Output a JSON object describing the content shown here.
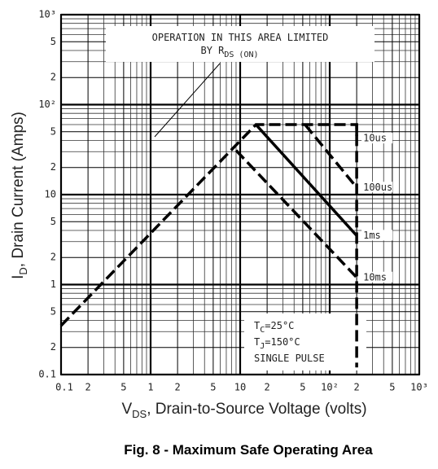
{
  "chart_data": {
    "type": "line",
    "title": "Fig. 8 - Maximum Safe Operating Area",
    "xlabel": {
      "main": "V",
      "sub": "DS",
      "rest": ", Drain-to-Source Voltage (volts)"
    },
    "ylabel": {
      "main": "I",
      "sub": "D",
      "rest": ", Drain Current (Amps)"
    },
    "log_x": true,
    "log_y": true,
    "grid": true,
    "xlim": [
      0.1,
      1000
    ],
    "ylim": [
      0.1,
      1000
    ],
    "xticks": [
      0.1,
      {
        "value": 0.2,
        "label": "2"
      },
      {
        "value": 0.5,
        "label": "5"
      },
      1,
      {
        "value": 2,
        "label": "2"
      },
      {
        "value": 5,
        "label": "5"
      },
      10,
      {
        "value": 20,
        "label": "2"
      },
      {
        "value": 50,
        "label": "5"
      },
      {
        "value": 100,
        "label": "10²"
      },
      {
        "value": 200,
        "label": "2"
      },
      {
        "value": 500,
        "label": "5"
      },
      {
        "value": 1000,
        "label": "10³"
      }
    ],
    "yticks": [
      0.1,
      {
        "value": 0.2,
        "label": "2"
      },
      {
        "value": 0.5,
        "label": "5"
      },
      1,
      {
        "value": 2,
        "label": "2"
      },
      {
        "value": 5,
        "label": "5"
      },
      10,
      {
        "value": 20,
        "label": "2"
      },
      {
        "value": 50,
        "label": "5"
      },
      {
        "value": 100,
        "label": "10²"
      },
      {
        "value": 200,
        "label": "2"
      },
      {
        "value": 500,
        "label": "5"
      },
      {
        "value": 1000,
        "label": "10³"
      }
    ],
    "series": [
      {
        "color": "#000000",
        "dashed": true,
        "x": [
          0.1,
          15,
          200,
          200
        ],
        "values": [
          0.35,
          60,
          60,
          0.12
        ]
      },
      {
        "name": "10us",
        "color": "#000000",
        "dashed": true,
        "x": [
          200,
          200
        ],
        "values": [
          60,
          42
        ]
      },
      {
        "name": "100us",
        "color": "#000000",
        "dashed": true,
        "x": [
          53,
          200
        ],
        "values": [
          60,
          12
        ]
      },
      {
        "name": "1ms",
        "color": "#000000",
        "dashed": false,
        "x": [
          15,
          200
        ],
        "values": [
          60,
          3.5
        ]
      },
      {
        "name": "10ms",
        "color": "#000000",
        "dashed": true,
        "x": [
          9,
          200
        ],
        "values": [
          31,
          1.2
        ]
      }
    ],
    "annotation": {
      "line1": "OPERATION IN THIS AREA LIMITED",
      "line2": "BY R",
      "line2_sub": "DS (ON)"
    },
    "conditions": [
      {
        "main": "T",
        "sub": "C",
        "rest": "=25°C"
      },
      {
        "main": "T",
        "sub": "J",
        "rest": "=150°C"
      },
      {
        "main": "SINGLE PULSE"
      }
    ]
  }
}
